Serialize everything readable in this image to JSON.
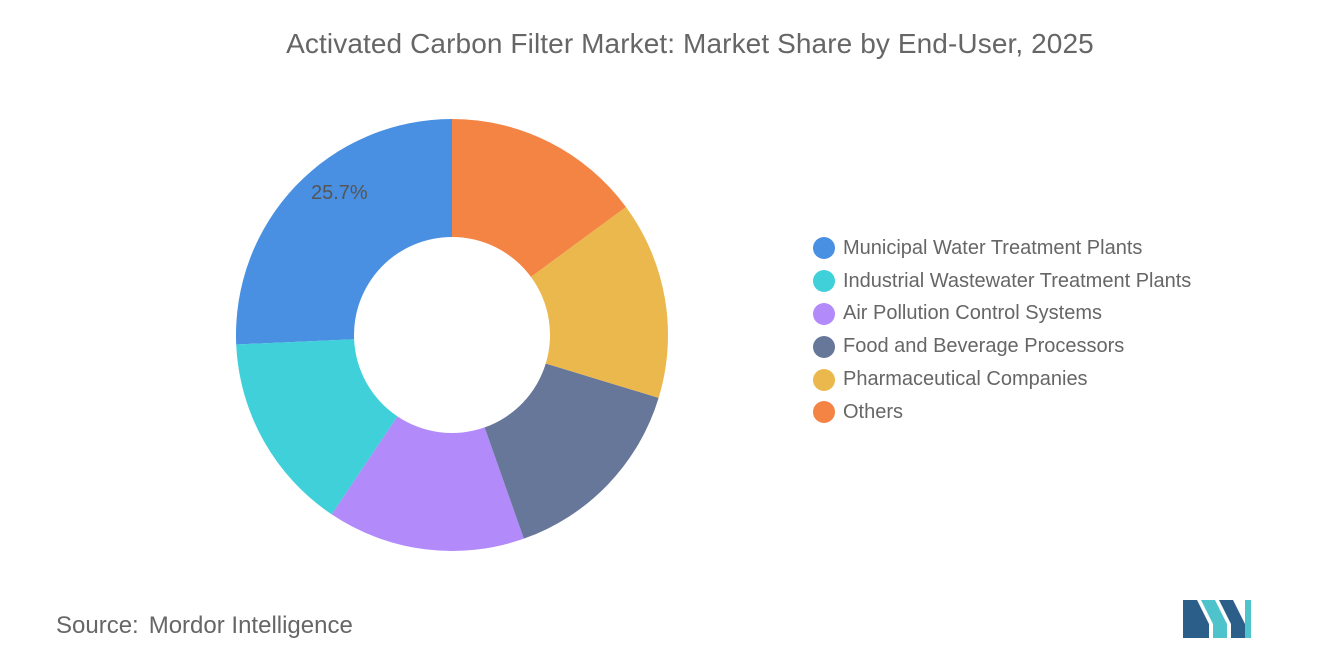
{
  "chart_data": {
    "type": "pie",
    "title": "Activated Carbon Filter Market: Market Share by End-User, 2025",
    "donut": true,
    "series": [
      {
        "name": "Municipal Water Treatment Plants",
        "value": 25.7,
        "color": "#4A90E2",
        "label": "25.7%"
      },
      {
        "name": "Industrial Wastewater Treatment Plants",
        "value": 14.9,
        "color": "#3FD0D9",
        "label": ""
      },
      {
        "name": "Air Pollution Control Systems",
        "value": 14.8,
        "color": "#B28AF9",
        "label": ""
      },
      {
        "name": "Food and Beverage Processors",
        "value": 14.9,
        "color": "#667799",
        "label": ""
      },
      {
        "name": "Pharmaceutical Companies",
        "value": 14.8,
        "color": "#EBB84D",
        "label": ""
      },
      {
        "name": "Others",
        "value": 14.9,
        "color": "#F38444",
        "label": ""
      }
    ],
    "legend_position": "right",
    "start_angle": "top",
    "direction": "counter-clockwise"
  },
  "source": {
    "label": "Source:",
    "value": "Mordor Intelligence"
  },
  "logo": {
    "icon": "mordor-intelligence-logo-icon",
    "colors": [
      "#2B5F8A",
      "#4EC3CC"
    ]
  }
}
